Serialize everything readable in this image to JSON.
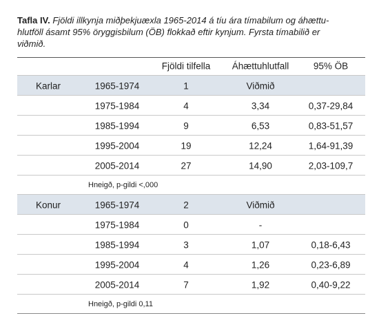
{
  "caption": {
    "label": "Tafla IV.",
    "lines": [
      "Fjöldi illkynja miðþekjuæxla 1965-2014 á tíu ára tímabilum og áhættu-",
      "hlutföll ásamt 95% öryggisbilum (ÖB) flokkað eftir kynjum. Fyrsta tímabilið er",
      "viðmið."
    ]
  },
  "table": {
    "headers": [
      "Fjöldi tilfella",
      "Áhættuhlutfall",
      "95% ÖB"
    ],
    "sections": [
      {
        "group": "Karlar",
        "rows": [
          {
            "period": "1965-1974",
            "count": 1,
            "ratio": "Viðmið"
          },
          {
            "period": "1975-1984",
            "count": 4,
            "ratio": "3,34",
            "ci": "0,37-29,84"
          },
          {
            "period": "1985-1994",
            "count": 9,
            "ratio": "6,53",
            "ci": "0,83-51,57"
          },
          {
            "period": "1995-2004",
            "count": 19,
            "ratio": "12,24",
            "ci": "1,64-91,39"
          },
          {
            "period": "2005-2014",
            "count": 27,
            "ratio": "14,90",
            "ci": "2,03-109,7"
          }
        ],
        "trend": "Hneigð, p-gildi <,000"
      },
      {
        "group": "Konur",
        "rows": [
          {
            "period": "1965-1974",
            "count": 2,
            "ratio": "Viðmið"
          },
          {
            "period": "1975-1984",
            "count": 0,
            "ratio": "-"
          },
          {
            "period": "1985-1994",
            "count": 3,
            "ratio": "1,07",
            "ci": "0,18-6,43"
          },
          {
            "period": "1995-2004",
            "count": 4,
            "ratio": "1,26",
            "ci": "0,23-6,89"
          },
          {
            "period": "2005-2014",
            "count": 7,
            "ratio": "1,92",
            "ci": "0,40-9,22"
          }
        ],
        "trend": "Hneigð, p-gildi 0,11"
      }
    ]
  }
}
